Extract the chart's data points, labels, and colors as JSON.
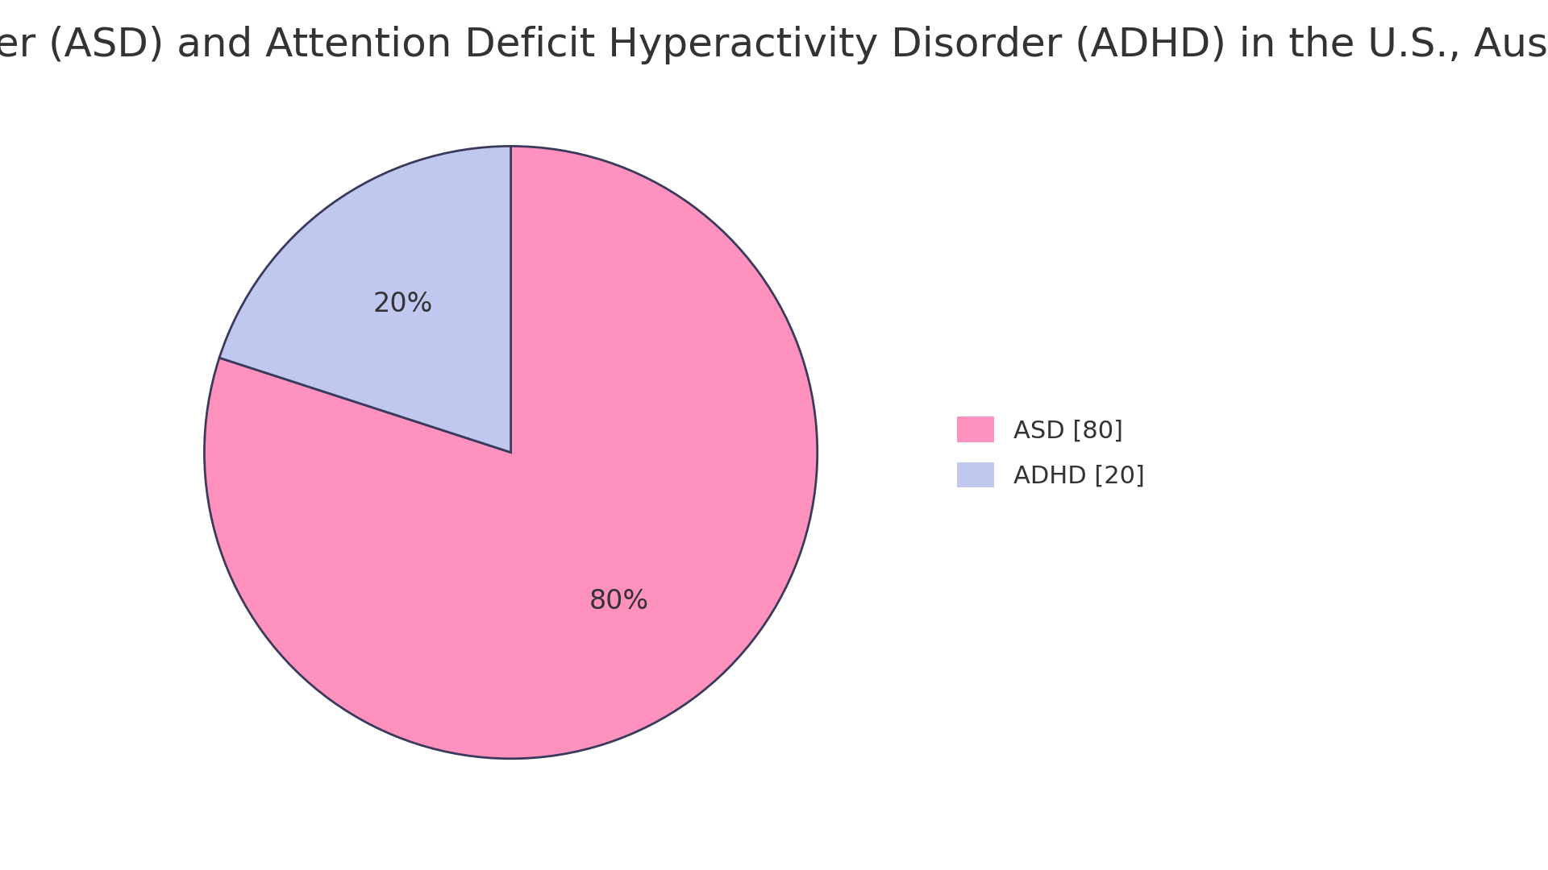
{
  "title": "Proportions of Autism Spectrum Disorder (ASD) and Attention Deficit Hyperactivity Disorder (ADHD) in the U.S., Aus",
  "slices": [
    80,
    20
  ],
  "labels": [
    "ASD [80]",
    "ADHD [20]"
  ],
  "colors": [
    "#FF91BE",
    "#C0C8F0"
  ],
  "edge_color": "#3A3A5C",
  "edge_width": 2.0,
  "startangle": 90,
  "text_color": "#333333",
  "background_color": "#FFFFFF",
  "title_fontsize": 36,
  "legend_fontsize": 22,
  "autopct_fontsize": 24,
  "pct_distance": 0.6
}
